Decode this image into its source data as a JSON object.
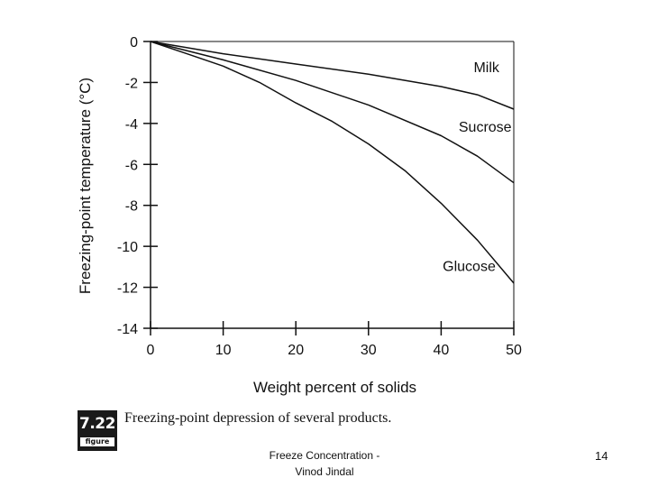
{
  "chart_data": {
    "type": "line",
    "title": "",
    "xlabel": "Weight percent of solids",
    "ylabel": "Freezing-point temperature (°C)",
    "xlim": [
      0,
      50
    ],
    "ylim": [
      -14,
      0
    ],
    "xticks": [
      0,
      10,
      20,
      30,
      40,
      50
    ],
    "yticks": [
      0,
      -2,
      -4,
      -6,
      -8,
      -10,
      -12,
      -14
    ],
    "grid": false,
    "series": [
      {
        "name": "Milk",
        "x": [
          0,
          10,
          20,
          30,
          40,
          45,
          50
        ],
        "y": [
          0,
          -0.6,
          -1.1,
          -1.6,
          -2.2,
          -2.6,
          -3.3
        ]
      },
      {
        "name": "Sucrose",
        "x": [
          0,
          10,
          20,
          30,
          40,
          45,
          50
        ],
        "y": [
          0,
          -0.9,
          -1.9,
          -3.1,
          -4.6,
          -5.6,
          -6.9
        ]
      },
      {
        "name": "Glucose",
        "x": [
          0,
          5,
          10,
          15,
          20,
          25,
          30,
          35,
          40,
          45,
          50
        ],
        "y": [
          0,
          -0.6,
          -1.2,
          -2.0,
          -3.0,
          -3.9,
          -5.0,
          -6.3,
          -7.9,
          -9.7,
          -11.8
        ]
      }
    ]
  },
  "figure": {
    "number": "7.22",
    "word": "figure",
    "caption": "Freezing-point depression of several products."
  },
  "footer": {
    "line1": "Freeze Concentration -",
    "line2": "Vinod Jindal",
    "page": "14"
  }
}
